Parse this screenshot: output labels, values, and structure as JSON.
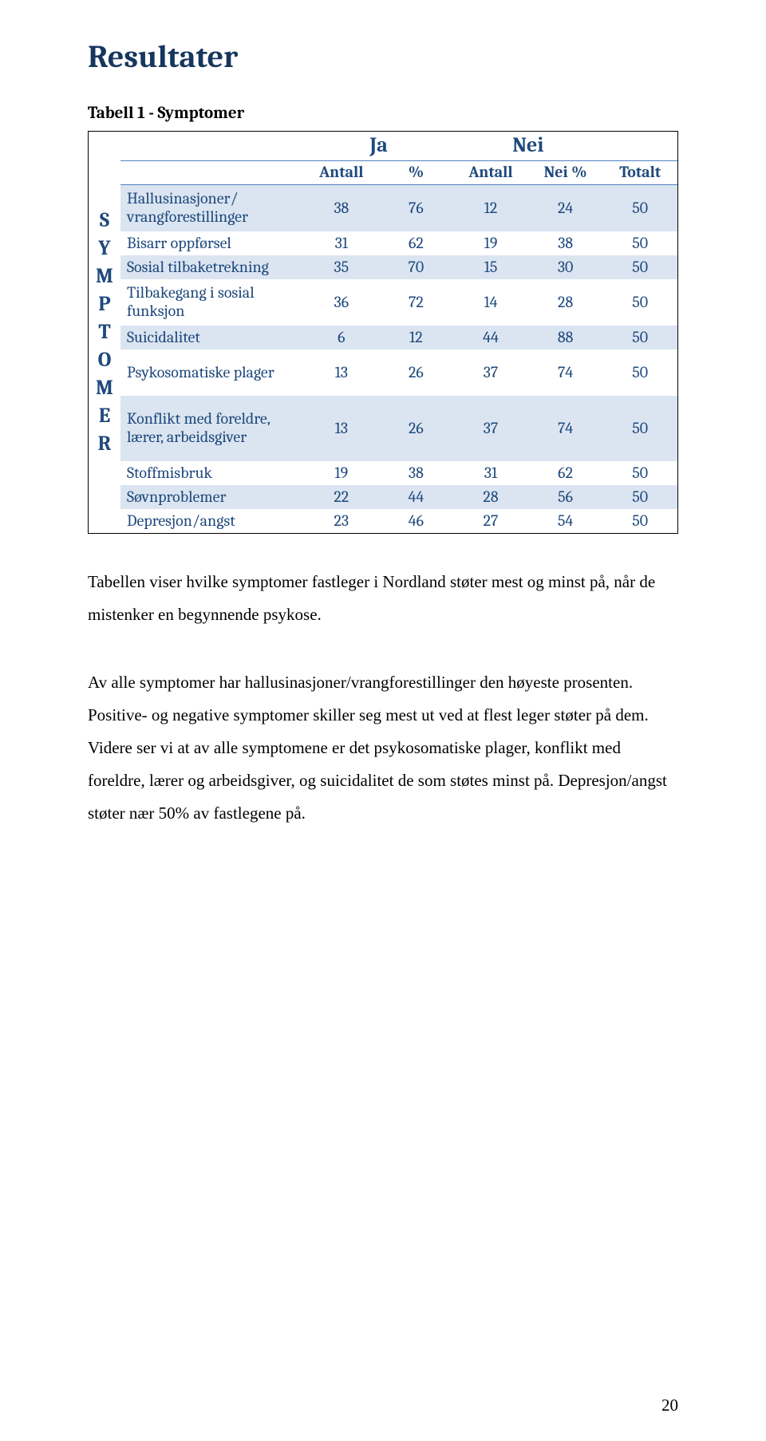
{
  "title": "Resultater",
  "table_caption": "Tabell 1 - Symptomer",
  "sidebar_letters": [
    "S",
    "Y",
    "M",
    "P",
    "T",
    "O",
    "M",
    "E",
    "R"
  ],
  "header_groups": {
    "ja": "Ja",
    "nei": "Nei"
  },
  "subheaders": [
    "Antall",
    "%",
    "Antall",
    "Nei %",
    "Totalt"
  ],
  "rows": [
    {
      "label": "Hallusinasjoner/ vrangforestillinger",
      "vals": [
        38,
        76,
        12,
        24,
        50
      ],
      "band": true,
      "tall": "tall"
    },
    {
      "label": "Bisarr oppførsel",
      "vals": [
        31,
        62,
        19,
        38,
        50
      ],
      "band": false,
      "tall": ""
    },
    {
      "label": "Sosial tilbaketrekning",
      "vals": [
        35,
        70,
        15,
        30,
        50
      ],
      "band": true,
      "tall": ""
    },
    {
      "label": "Tilbakegang i sosial funksjon",
      "vals": [
        36,
        72,
        14,
        28,
        50
      ],
      "band": false,
      "tall": "tall"
    },
    {
      "label": "Suicidalitet",
      "vals": [
        6,
        12,
        44,
        88,
        50
      ],
      "band": true,
      "tall": ""
    },
    {
      "label": "Psykosomatiske plager",
      "vals": [
        13,
        26,
        37,
        74,
        50
      ],
      "band": false,
      "tall": "tall"
    },
    {
      "label": "Konflikt med foreldre, lærer, arbeidsgiver",
      "vals": [
        13,
        26,
        37,
        74,
        50
      ],
      "band": true,
      "tall": "tall3"
    },
    {
      "label": "Stoffmisbruk",
      "vals": [
        19,
        38,
        31,
        62,
        50
      ],
      "band": false,
      "tall": ""
    },
    {
      "label": "Søvnproblemer",
      "vals": [
        22,
        44,
        28,
        56,
        50
      ],
      "band": true,
      "tall": ""
    },
    {
      "label": "Depresjon/angst",
      "vals": [
        23,
        46,
        27,
        54,
        50
      ],
      "band": false,
      "tall": ""
    }
  ],
  "paragraph1": "Tabellen viser hvilke symptomer fastleger i Nordland støter mest og minst på, når de mistenker en begynnende psykose.",
  "paragraph2": "Av alle symptomer har hallusinasjoner/vrangforestillinger den høyeste prosenten. Positive- og negative symptomer skiller seg mest ut ved at flest leger støter på dem. Videre ser vi at av alle symptomene er det psykosomatiske plager, konflikt med foreldre, lærer og arbeidsgiver, og suicidalitet de som støtes minst på. Depresjon/angst støter nær 50% av fastlegene på.",
  "page_number": "20",
  "colors": {
    "heading": "#17365d",
    "table_text": "#1f497d",
    "band": "#dbe5f1",
    "rule": "#4f81bd"
  }
}
